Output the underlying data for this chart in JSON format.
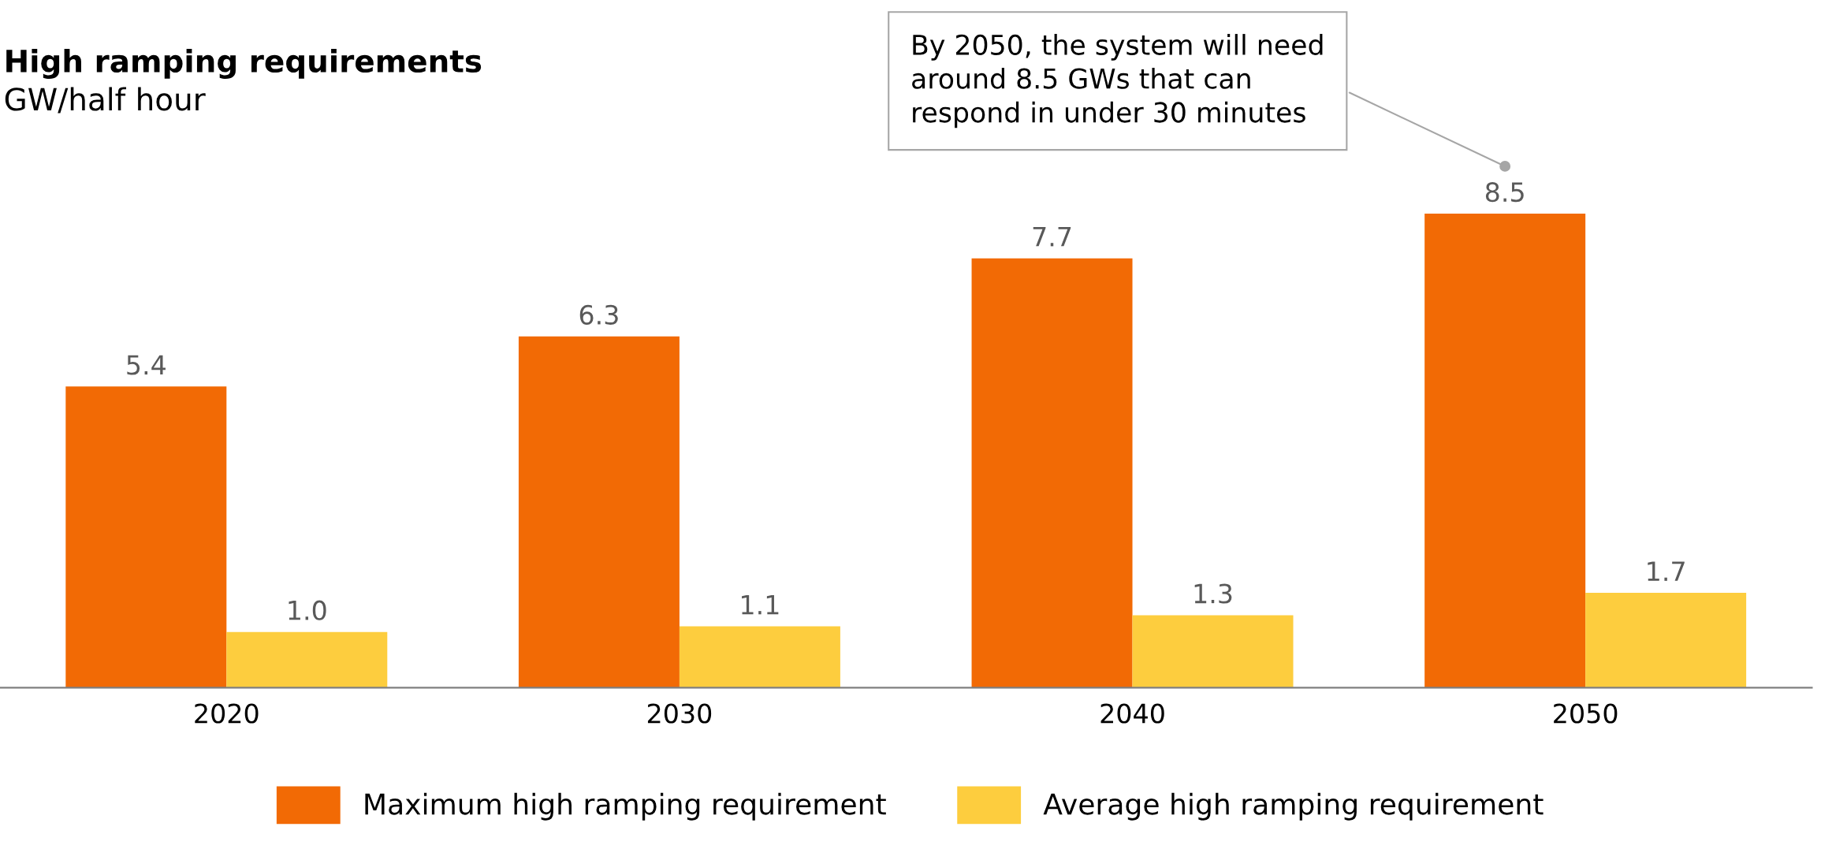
{
  "chart_data": {
    "type": "bar",
    "title": "High ramping requirements",
    "subtitle": "GW/half hour",
    "categories": [
      "2020",
      "2030",
      "2040",
      "2050"
    ],
    "series": [
      {
        "name": "Maximum high ramping requirement",
        "color": "#f26a05",
        "values": [
          5.4,
          6.3,
          7.7,
          8.5
        ],
        "value_labels": [
          "5.4",
          "6.3",
          "7.7",
          "8.5"
        ]
      },
      {
        "name": "Average high ramping requirement",
        "color": "#fdcd3e",
        "values": [
          1.0,
          1.1,
          1.3,
          1.7
        ],
        "value_labels": [
          "1.0",
          "1.1",
          "1.3",
          "1.7"
        ]
      }
    ],
    "tick_labels": "x",
    "legend": "bottom",
    "grid": false,
    "annotations": [
      "By 2050, the system will need\naround 8.5 GWs that can\nrespond in under 30 minutes"
    ]
  }
}
